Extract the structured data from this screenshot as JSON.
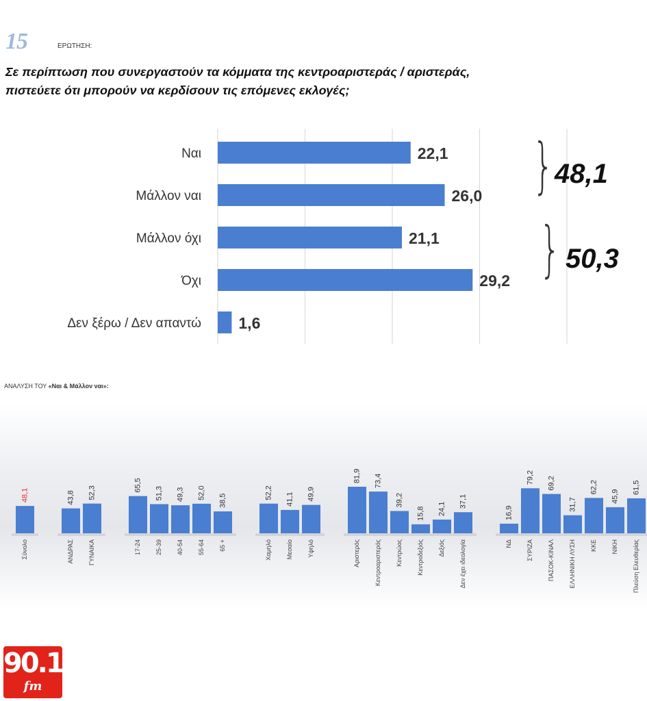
{
  "question": {
    "number": "15",
    "label": "ΕΡΩΤΗΣΗ:",
    "title_line1": "Σε περίπτωση που συνεργαστούν τα κόμματα της κεντροαριστεράς / αριστεράς,",
    "title_line2": "πιστεύετε ότι μπορούν να κερδίσουν τις επόμενες εκλογές;"
  },
  "totals": {
    "yes": "48,1",
    "no": "50,3"
  },
  "analysis": {
    "prefix": "ΑΝΑΛΥΣΗ ΤΟΥ ",
    "subject": "«Ναι & Μάλλον ναι»:"
  },
  "logo": {
    "number": "90.1",
    "suffix": "fm"
  },
  "colors": {
    "bar": "#4a7ed0",
    "highlight": "#e23232",
    "grid": "#d6d6d6"
  },
  "chart_data": [
    {
      "type": "bar",
      "orientation": "horizontal",
      "categories": [
        "Ναι",
        "Μάλλον ναι",
        "Μάλλον όχι",
        "Όχι",
        "Δεν ξέρω / Δεν απαντώ"
      ],
      "values": [
        22.1,
        26.0,
        21.1,
        29.2,
        1.6
      ],
      "value_labels": [
        "22,1",
        "26,0",
        "21,1",
        "29,2",
        "1,6"
      ],
      "xlim": [
        0,
        40
      ],
      "grid": true
    },
    {
      "type": "bar",
      "orientation": "vertical",
      "categories": [
        "Σύνολο",
        "ΑΝΔΡΑΣ",
        "ΓΥΝΑΙΚΑ",
        "17-24",
        "25-39",
        "40-54",
        "55-64",
        "65 +",
        "Χαμηλό",
        "Μεσαίο",
        "Υψηλό",
        "Αριστερός",
        "Κεντροαριστερός",
        "Κεντρώος",
        "Κεντροδεξιός",
        "Δεξιός",
        "Δεν έχει ιδεολογία",
        "ΝΔ",
        "ΣΥΡΙΖΑ",
        "ΠΑΣΟΚ-ΚΙΝΑΛ",
        "ΕΛΛΗΝΙΚΗ ΛΥΣΗ",
        "ΚΚΕ",
        "ΝΙΚΗ",
        "Πλεύση Ελευθερίας"
      ],
      "values": [
        48.1,
        43.8,
        52.3,
        65.5,
        51.3,
        49.3,
        52.0,
        38.5,
        52.2,
        41.1,
        49.9,
        81.9,
        73.4,
        39.2,
        15.8,
        24.1,
        37.1,
        16.9,
        79.2,
        69.2,
        31.7,
        62.2,
        45.9,
        61.5
      ],
      "value_labels": [
        "48,1",
        "43,8",
        "52,3",
        "65,5",
        "51,3",
        "49,3",
        "52,0",
        "38,5",
        "52,2",
        "41,1",
        "49,9",
        "81,9",
        "73,4",
        "39,2",
        "15,8",
        "24,1",
        "37,1",
        "16,9",
        "79,2",
        "69,2",
        "31,7",
        "62,2",
        "45,9",
        "61,5"
      ],
      "groups": [
        1,
        2,
        5,
        3,
        6,
        7
      ],
      "highlight_index": 0,
      "ylim": [
        0,
        100
      ],
      "grid": false
    }
  ]
}
